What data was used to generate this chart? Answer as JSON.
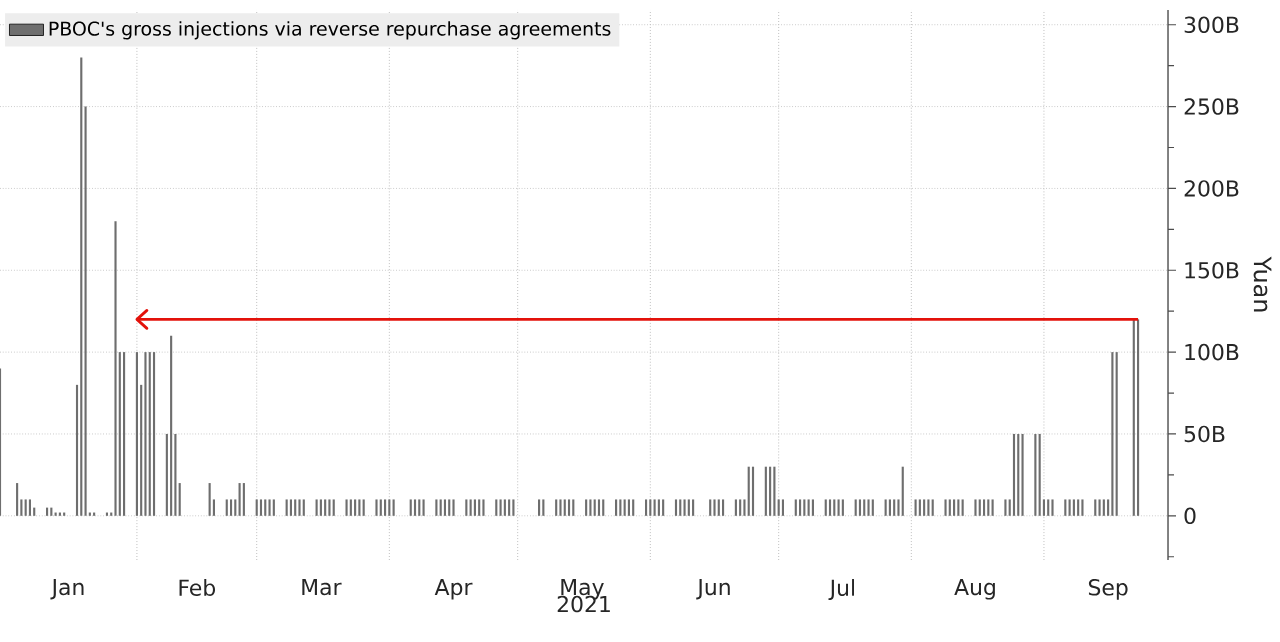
{
  "chart_data": {
    "type": "bar",
    "xlabel": "2021",
    "ylabel": "Yuan",
    "xlim": [
      "2020-12-31",
      "2021-09-30"
    ],
    "ylim": [
      -27,
      309
    ],
    "xticks": [
      {
        "value": "2021-01-16",
        "label": "Jan"
      },
      {
        "value": "2021-02-15",
        "label": "Feb"
      },
      {
        "value": "2021-03-16",
        "label": "Mar"
      },
      {
        "value": "2021-04-16",
        "label": "Apr"
      },
      {
        "value": "2021-05-16",
        "label": "May"
      },
      {
        "value": "2021-06-16",
        "label": "Jun"
      },
      {
        "value": "2021-07-16",
        "label": "Jul"
      },
      {
        "value": "2021-08-16",
        "label": "Aug"
      },
      {
        "value": "2021-09-16",
        "label": "Sep"
      },
      {
        "value": "2021-02-01",
        "label": null
      },
      {
        "value": "2021-03-01",
        "label": null
      },
      {
        "value": "2021-04-01",
        "label": null
      },
      {
        "value": "2021-05-01",
        "label": null
      },
      {
        "value": "2021-06-01",
        "label": null
      },
      {
        "value": "2021-07-01",
        "label": null
      },
      {
        "value": "2021-08-01",
        "label": null
      },
      {
        "value": "2021-09-01",
        "label": null
      }
    ],
    "yticks": [
      0,
      {
        "value": 50,
        "label": "50B"
      },
      {
        "value": 100,
        "label": "100B"
      },
      {
        "value": 150,
        "label": "150B"
      },
      {
        "value": 200,
        "label": "200B"
      },
      {
        "value": 250,
        "label": "250B"
      },
      {
        "value": 300,
        "label": "300B"
      },
      {
        "value": -25,
        "label": null
      },
      {
        "value": 25,
        "label": null
      },
      {
        "value": 75,
        "label": null
      },
      {
        "value": 125,
        "label": null
      },
      {
        "value": 175,
        "label": null
      },
      {
        "value": 225,
        "label": null
      },
      {
        "value": 275,
        "label": null
      }
    ],
    "grid": true,
    "legend": "top left",
    "series": [
      {
        "name": "PBOC's gross injections via reverse repurchase agreements",
        "color": "#6e6e6e",
        "x": [
          "2020-12-31",
          "2021-01-04",
          "2021-01-05",
          "2021-01-06",
          "2021-01-07",
          "2021-01-08",
          "2021-01-11",
          "2021-01-12",
          "2021-01-13",
          "2021-01-14",
          "2021-01-15",
          "2021-01-18",
          "2021-01-19",
          "2021-01-20",
          "2021-01-21",
          "2021-01-22",
          "2021-01-25",
          "2021-01-26",
          "2021-01-27",
          "2021-01-28",
          "2021-01-29",
          "2021-02-01",
          "2021-02-02",
          "2021-02-03",
          "2021-02-04",
          "2021-02-05",
          "2021-02-08",
          "2021-02-09",
          "2021-02-10",
          "2021-02-11",
          "2021-02-18",
          "2021-02-19",
          "2021-02-22",
          "2021-02-23",
          "2021-02-24",
          "2021-02-25",
          "2021-02-26",
          "2021-03-01",
          "2021-03-02",
          "2021-03-03",
          "2021-03-04",
          "2021-03-05",
          "2021-03-08",
          "2021-03-09",
          "2021-03-10",
          "2021-03-11",
          "2021-03-12",
          "2021-03-15",
          "2021-03-16",
          "2021-03-17",
          "2021-03-18",
          "2021-03-19",
          "2021-03-22",
          "2021-03-23",
          "2021-03-24",
          "2021-03-25",
          "2021-03-26",
          "2021-03-29",
          "2021-03-30",
          "2021-03-31",
          "2021-04-01",
          "2021-04-02",
          "2021-04-06",
          "2021-04-07",
          "2021-04-08",
          "2021-04-09",
          "2021-04-12",
          "2021-04-13",
          "2021-04-14",
          "2021-04-15",
          "2021-04-16",
          "2021-04-19",
          "2021-04-20",
          "2021-04-21",
          "2021-04-22",
          "2021-04-23",
          "2021-04-26",
          "2021-04-27",
          "2021-04-28",
          "2021-04-29",
          "2021-04-30",
          "2021-05-06",
          "2021-05-07",
          "2021-05-10",
          "2021-05-11",
          "2021-05-12",
          "2021-05-13",
          "2021-05-14",
          "2021-05-17",
          "2021-05-18",
          "2021-05-19",
          "2021-05-20",
          "2021-05-21",
          "2021-05-24",
          "2021-05-25",
          "2021-05-26",
          "2021-05-27",
          "2021-05-28",
          "2021-05-31",
          "2021-06-01",
          "2021-06-02",
          "2021-06-03",
          "2021-06-04",
          "2021-06-07",
          "2021-06-08",
          "2021-06-09",
          "2021-06-10",
          "2021-06-11",
          "2021-06-15",
          "2021-06-16",
          "2021-06-17",
          "2021-06-18",
          "2021-06-21",
          "2021-06-22",
          "2021-06-23",
          "2021-06-24",
          "2021-06-25",
          "2021-06-28",
          "2021-06-29",
          "2021-06-30",
          "2021-07-01",
          "2021-07-02",
          "2021-07-05",
          "2021-07-06",
          "2021-07-07",
          "2021-07-08",
          "2021-07-09",
          "2021-07-12",
          "2021-07-13",
          "2021-07-14",
          "2021-07-15",
          "2021-07-16",
          "2021-07-19",
          "2021-07-20",
          "2021-07-21",
          "2021-07-22",
          "2021-07-23",
          "2021-07-26",
          "2021-07-27",
          "2021-07-28",
          "2021-07-29",
          "2021-07-30",
          "2021-08-02",
          "2021-08-03",
          "2021-08-04",
          "2021-08-05",
          "2021-08-06",
          "2021-08-09",
          "2021-08-10",
          "2021-08-11",
          "2021-08-12",
          "2021-08-13",
          "2021-08-16",
          "2021-08-17",
          "2021-08-18",
          "2021-08-19",
          "2021-08-20",
          "2021-08-23",
          "2021-08-24",
          "2021-08-25",
          "2021-08-26",
          "2021-08-27",
          "2021-08-30",
          "2021-08-31",
          "2021-09-01",
          "2021-09-02",
          "2021-09-03",
          "2021-09-06",
          "2021-09-07",
          "2021-09-08",
          "2021-09-09",
          "2021-09-10",
          "2021-09-13",
          "2021-09-14",
          "2021-09-15",
          "2021-09-16",
          "2021-09-17",
          "2021-09-18",
          "2021-09-22",
          "2021-09-23"
        ],
        "values": [
          90,
          20,
          10,
          10,
          10,
          5,
          5,
          5,
          2,
          2,
          2,
          80,
          280,
          250,
          2,
          2,
          2,
          2,
          180,
          100,
          100,
          100,
          80,
          100,
          100,
          100,
          50,
          110,
          50,
          20,
          20,
          10,
          10,
          10,
          10,
          20,
          20,
          10,
          10,
          10,
          10,
          10,
          10,
          10,
          10,
          10,
          10,
          10,
          10,
          10,
          10,
          10,
          10,
          10,
          10,
          10,
          10,
          10,
          10,
          10,
          10,
          10,
          10,
          10,
          10,
          10,
          10,
          10,
          10,
          10,
          10,
          10,
          10,
          10,
          10,
          10,
          10,
          10,
          10,
          10,
          10,
          10,
          10,
          10,
          10,
          10,
          10,
          10,
          10,
          10,
          10,
          10,
          10,
          10,
          10,
          10,
          10,
          10,
          10,
          10,
          10,
          10,
          10,
          10,
          10,
          10,
          10,
          10,
          10,
          10,
          10,
          10,
          10,
          10,
          10,
          30,
          30,
          30,
          30,
          30,
          10,
          10,
          10,
          10,
          10,
          10,
          10,
          10,
          10,
          10,
          10,
          10,
          10,
          10,
          10,
          10,
          10,
          10,
          10,
          10,
          10,
          30,
          10,
          10,
          10,
          10,
          10,
          10,
          10,
          10,
          10,
          10,
          10,
          10,
          10,
          10,
          10,
          10,
          10,
          50,
          50,
          50,
          50,
          50,
          10,
          10,
          10,
          10,
          10,
          10,
          10,
          10,
          10,
          10,
          10,
          10,
          100,
          100,
          120,
          120
        ]
      },
      {
        "type": "line",
        "color": "#e3120b",
        "x": [
          "2021-02-01",
          "2021-09-23"
        ],
        "values": [
          120,
          120
        ]
      }
    ]
  }
}
